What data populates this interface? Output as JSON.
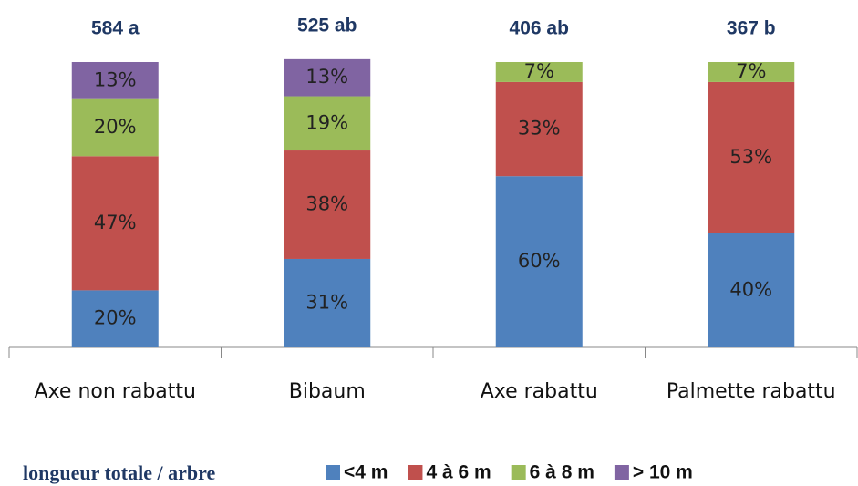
{
  "chart_data": {
    "type": "stacked_bar",
    "categories": [
      "Axe non rabattu",
      "Bibaum",
      "Axe  rabattu",
      "Palmette  rabattu"
    ],
    "annotations": [
      "584 a",
      "525 ab",
      "406 ab",
      "367 b"
    ],
    "legend_title": "longueur totale / arbre",
    "series": [
      {
        "name": "<4 m",
        "color": "#4f81bd",
        "values": [
          20,
          31,
          60,
          40
        ],
        "value_labels": [
          "20%",
          "31%",
          "60%",
          "40%"
        ]
      },
      {
        "name": "4 à 6 m",
        "color": "#c0504d",
        "values": [
          47,
          38,
          33,
          53
        ],
        "value_labels": [
          "47%",
          "38%",
          "33%",
          "53%"
        ]
      },
      {
        "name": "6 à 8 m",
        "color": "#9bbb59",
        "values": [
          20,
          19,
          7,
          7
        ],
        "value_labels": [
          "20%",
          "19%",
          "7%",
          "7%"
        ]
      },
      {
        "name": "> 10 m",
        "color": "#8064a2",
        "values": [
          13,
          13,
          null,
          null
        ],
        "value_labels": [
          "13%",
          "13%",
          null,
          null
        ]
      }
    ],
    "ylim": [
      0,
      100
    ],
    "legend": "bottom"
  }
}
